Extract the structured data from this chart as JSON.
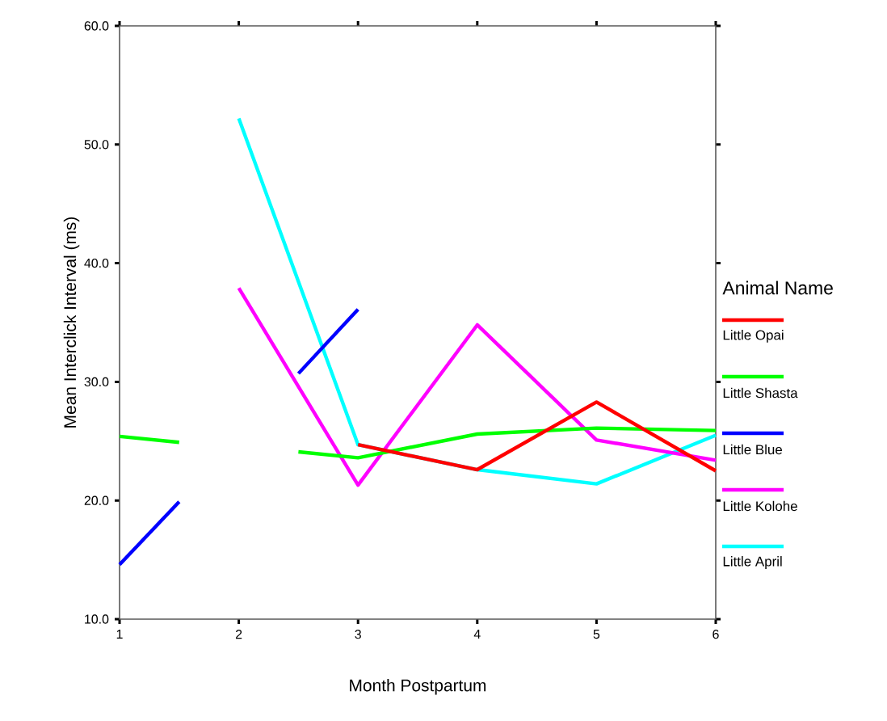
{
  "chart_data": {
    "type": "line",
    "xlabel": "Month Postpartum",
    "ylabel": "Mean Interclick Interval (ms)",
    "legend_title": "Animal Name",
    "xlim": [
      1,
      6
    ],
    "ylim": [
      10,
      60
    ],
    "xticks": [
      1,
      2,
      3,
      4,
      5,
      6
    ],
    "yticks": [
      {
        "value": 10,
        "label": "10.0"
      },
      {
        "value": 20,
        "label": "20.0"
      },
      {
        "value": 30,
        "label": "30.0"
      },
      {
        "value": 40,
        "label": "40.0"
      },
      {
        "value": 50,
        "label": "50.0"
      },
      {
        "value": 60,
        "label": "60.0"
      }
    ],
    "grid": false,
    "legend": "right",
    "marker": "none",
    "line_style": "solid",
    "series": [
      {
        "name": "Little Opai",
        "color": "#ff0000",
        "x": [
          3,
          4,
          5,
          6
        ],
        "values": [
          24.7,
          22.6,
          28.3,
          22.5
        ]
      },
      {
        "name": "Little Shasta",
        "color": "#00ff00",
        "x": [
          1,
          1.5,
          2,
          2.5,
          3,
          4,
          5,
          6
        ],
        "values": [
          25.4,
          24.9,
          null,
          24.1,
          23.6,
          25.6,
          26.1,
          25.9
        ]
      },
      {
        "name": "Little Blue",
        "color": "#0000ff",
        "x": [
          1,
          1.5,
          2,
          2.5,
          3
        ],
        "values": [
          14.6,
          19.9,
          null,
          30.7,
          36.1
        ]
      },
      {
        "name": "Little Kolohe",
        "color": "#ff00ff",
        "x": [
          2,
          3,
          4,
          5,
          6
        ],
        "values": [
          37.9,
          21.3,
          34.8,
          25.1,
          23.4
        ]
      },
      {
        "name": "Little April",
        "color": "#00ffff",
        "x": [
          2,
          3,
          4,
          5,
          6
        ],
        "values": [
          52.2,
          24.7,
          22.6,
          21.4,
          25.5
        ]
      }
    ]
  }
}
